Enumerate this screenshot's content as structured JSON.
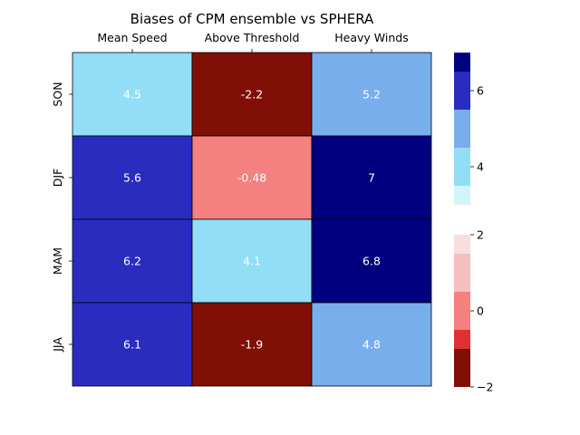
{
  "chart_data": {
    "type": "heatmap",
    "title": "Biases of CPM ensemble vs SPHERA",
    "columns": [
      "Mean Speed",
      "Above Threshold",
      "Heavy Winds"
    ],
    "rows": [
      "SON",
      "DJF",
      "MAM",
      "JJA"
    ],
    "values": [
      [
        4.5,
        -2.2,
        5.2
      ],
      [
        5.6,
        -0.48,
        7
      ],
      [
        6.2,
        4.1,
        6.8
      ],
      [
        6.1,
        -1.9,
        4.8
      ]
    ],
    "cell_labels": [
      [
        "4.5",
        "-2.2",
        "5.2"
      ],
      [
        "5.6",
        "-0.48",
        "7"
      ],
      [
        "6.2",
        "4.1",
        "6.8"
      ],
      [
        "6.1",
        "-1.9",
        "4.8"
      ]
    ],
    "colorbars": [
      {
        "range": [
          3,
          7
        ],
        "ticks": [
          4,
          6
        ],
        "tick_labels": [
          "4",
          "6"
        ],
        "bins": [
          {
            "from": 3,
            "to": 3.5,
            "color": "#d2f5fa"
          },
          {
            "from": 3.5,
            "to": 4.5,
            "color": "#92def7"
          },
          {
            "from": 4.5,
            "to": 5.5,
            "color": "#79aeec"
          },
          {
            "from": 5.5,
            "to": 6.5,
            "color": "#2a2cc0"
          },
          {
            "from": 6.5,
            "to": 7,
            "color": "#000080"
          }
        ]
      },
      {
        "range": [
          -2,
          2
        ],
        "ticks": [
          -2,
          0,
          2
        ],
        "tick_labels": [
          "−2",
          "0",
          "2"
        ],
        "bins": [
          {
            "from": -2,
            "to": -1,
            "color": "#800f05"
          },
          {
            "from": -1,
            "to": -0.5,
            "color": "#de3232"
          },
          {
            "from": -0.5,
            "to": 0.5,
            "color": "#f48080"
          },
          {
            "from": 0.5,
            "to": 1.5,
            "color": "#f7bebe"
          },
          {
            "from": 1.5,
            "to": 2,
            "color": "#f8dedc"
          }
        ]
      }
    ],
    "xaxis_position": "top",
    "grid": false
  }
}
